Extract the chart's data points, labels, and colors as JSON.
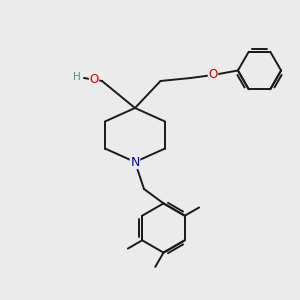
{
  "bg_color": "#ebebeb",
  "bond_color": "#1a1a1a",
  "bond_width": 1.4,
  "atom_colors": {
    "O": "#cc0000",
    "N": "#0000bb",
    "H": "#5a8a8a",
    "C": "#1a1a1a"
  },
  "font_size_atom": 8.5,
  "font_size_h": 7.5,
  "fig_size": [
    3.0,
    3.0
  ],
  "dpi": 100
}
